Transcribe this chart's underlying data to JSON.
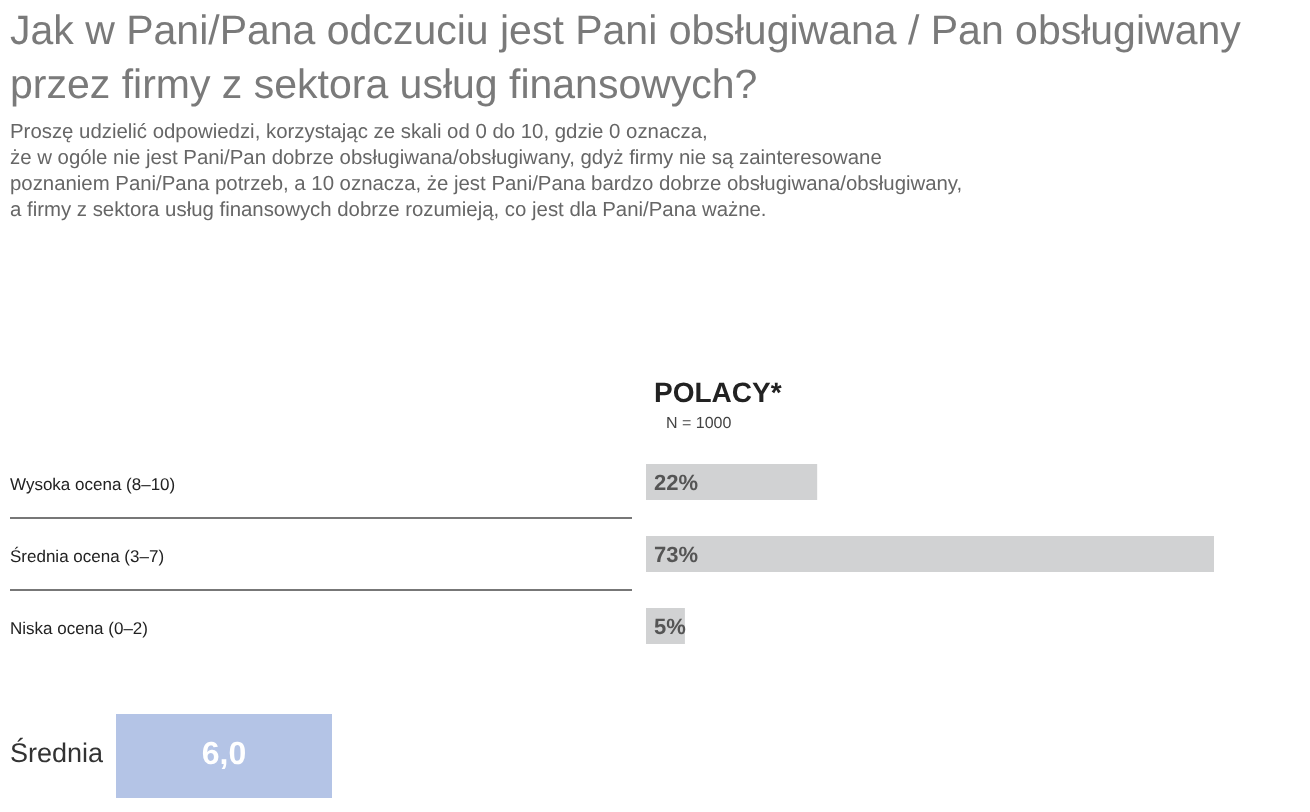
{
  "chart_data": {
    "type": "bar",
    "orientation": "horizontal",
    "title": "Jak w Pani/Pana odczuciu jest Pani obsługiwana / Pan obsługiwany przez firmy z sektora usług finansowych?",
    "subtitle": "Proszę udzielić odpowiedzi, korzystając ze skali od 0 do 10, gdzie 0 oznacza,\nże w ogóle nie jest Pani/Pan dobrze obsługiwana/obsługiwany, gdyż firmy nie są zainteresowane\npoznaniem Pani/Pana potrzeb, a 10 oznacza, że jest Pani/Pana bardzo dobrze obsługiwana/obsługiwany,\na firmy z sektora usług finansowych dobrze rozumieją, co jest dla Pani/Pana ważne.",
    "categories": [
      "Wysoka ocena (8–10)",
      "Średnia ocena (3–7)",
      "Niska ocena (0–2)"
    ],
    "series": [
      {
        "name": "POLACY*",
        "color": "#d1d2d3",
        "values": [
          22,
          73,
          5
        ],
        "value_labels": [
          "22%",
          "73%",
          "5%"
        ]
      }
    ],
    "annotations": [
      "N = 1000",
      "Średnia",
      "6,0"
    ]
  }
}
